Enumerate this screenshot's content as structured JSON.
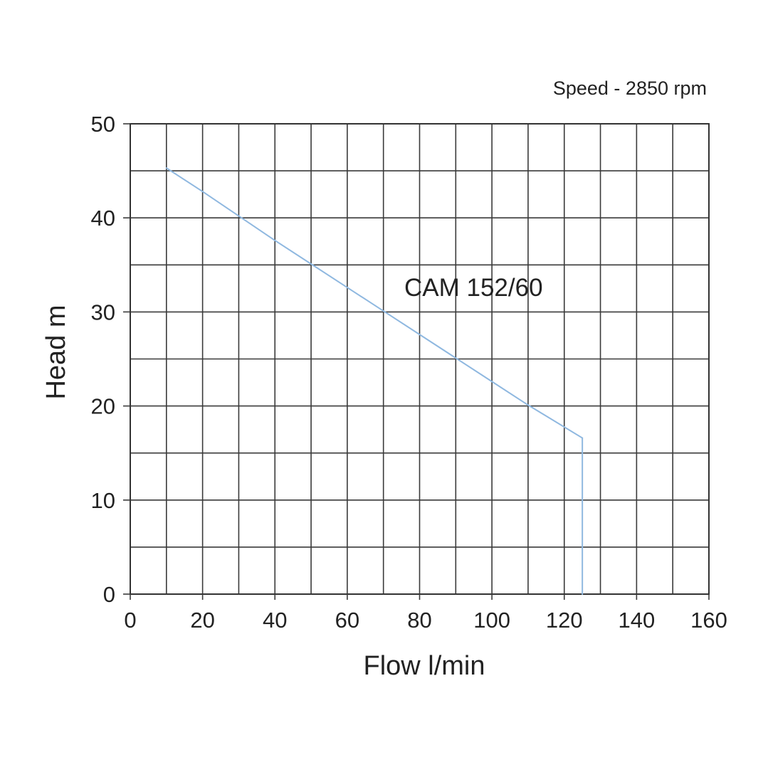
{
  "chart_data": {
    "type": "line",
    "title": "",
    "annotation": "Speed - 2850 rpm",
    "xlabel": "Flow l/min",
    "ylabel": "Head m",
    "xlim": [
      0,
      160
    ],
    "ylim": [
      0,
      50
    ],
    "x_ticks": [
      0,
      20,
      40,
      60,
      80,
      100,
      120,
      140,
      160
    ],
    "y_ticks": [
      0,
      10,
      20,
      30,
      40,
      50
    ],
    "x_tick_labels": [
      "0",
      "20",
      "40",
      "60",
      "80",
      "100",
      "120",
      "140",
      "160"
    ],
    "y_tick_labels": [
      "0",
      "10",
      "20",
      "30",
      "40",
      "50"
    ],
    "x_gridlines": [
      0,
      10,
      20,
      30,
      40,
      50,
      60,
      70,
      80,
      90,
      100,
      110,
      120,
      130,
      140,
      150,
      160
    ],
    "y_gridlines": [
      0,
      5,
      10,
      15,
      20,
      25,
      30,
      35,
      40,
      45,
      50
    ],
    "grid": true,
    "series": [
      {
        "name": "CAM 152/60",
        "color": "#8fb8e0",
        "x": [
          10,
          20,
          30,
          40,
          50,
          60,
          70,
          80,
          90,
          100,
          110,
          125,
          125
        ],
        "y": [
          45.3,
          42.8,
          40.2,
          37.6,
          35.1,
          32.6,
          30.1,
          27.6,
          25.1,
          22.6,
          20.1,
          16.6,
          0
        ]
      }
    ]
  }
}
